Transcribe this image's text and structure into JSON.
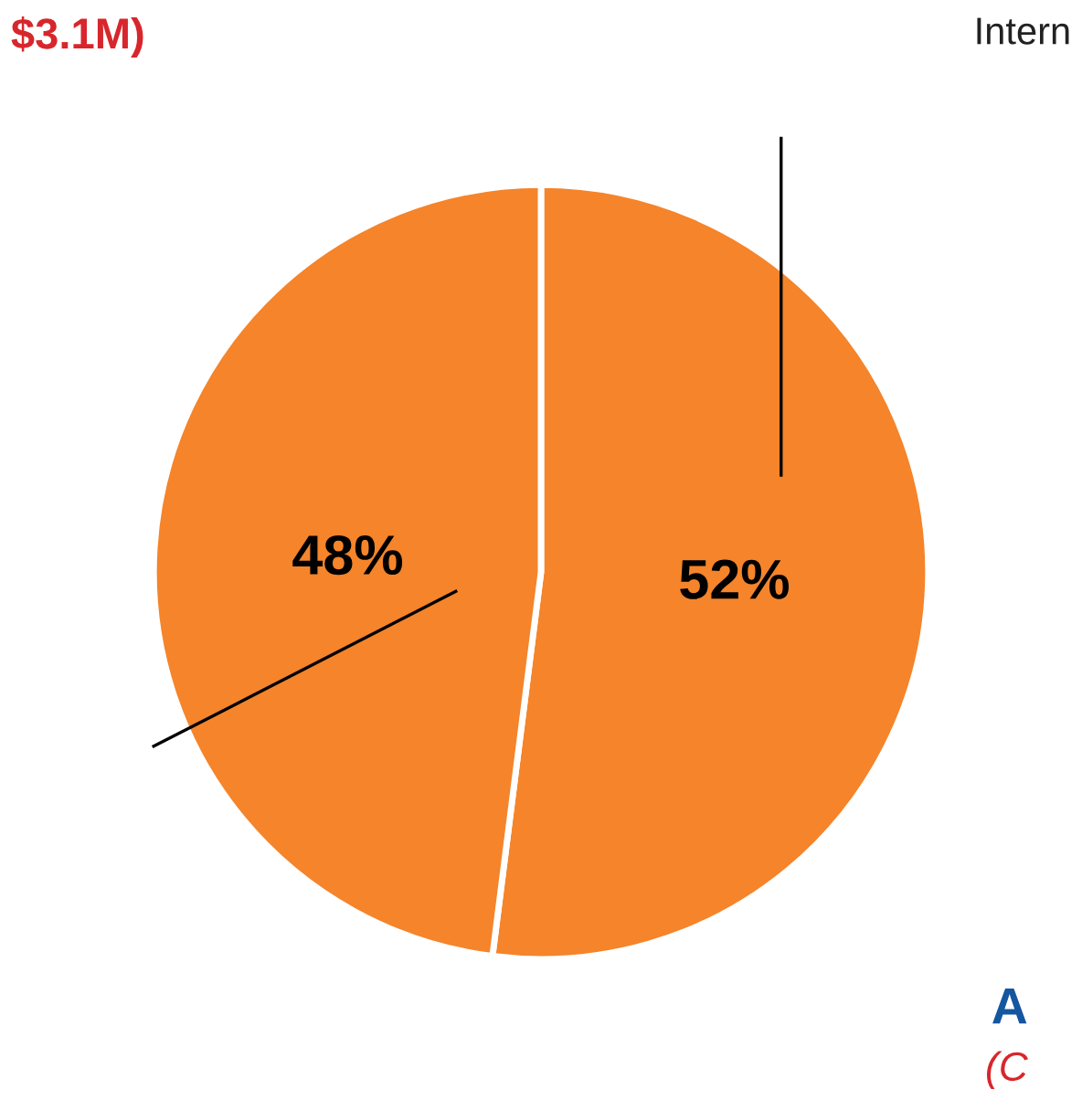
{
  "chart_data": {
    "type": "pie",
    "categories": [
      null,
      null
    ],
    "values": [
      52,
      48
    ],
    "colors": [
      "#f5842a",
      "#f5842a"
    ],
    "value_labels": [
      "52%",
      "48%"
    ],
    "annotations": [
      "$3.1M)",
      "Intern",
      "A",
      "(C"
    ]
  }
}
